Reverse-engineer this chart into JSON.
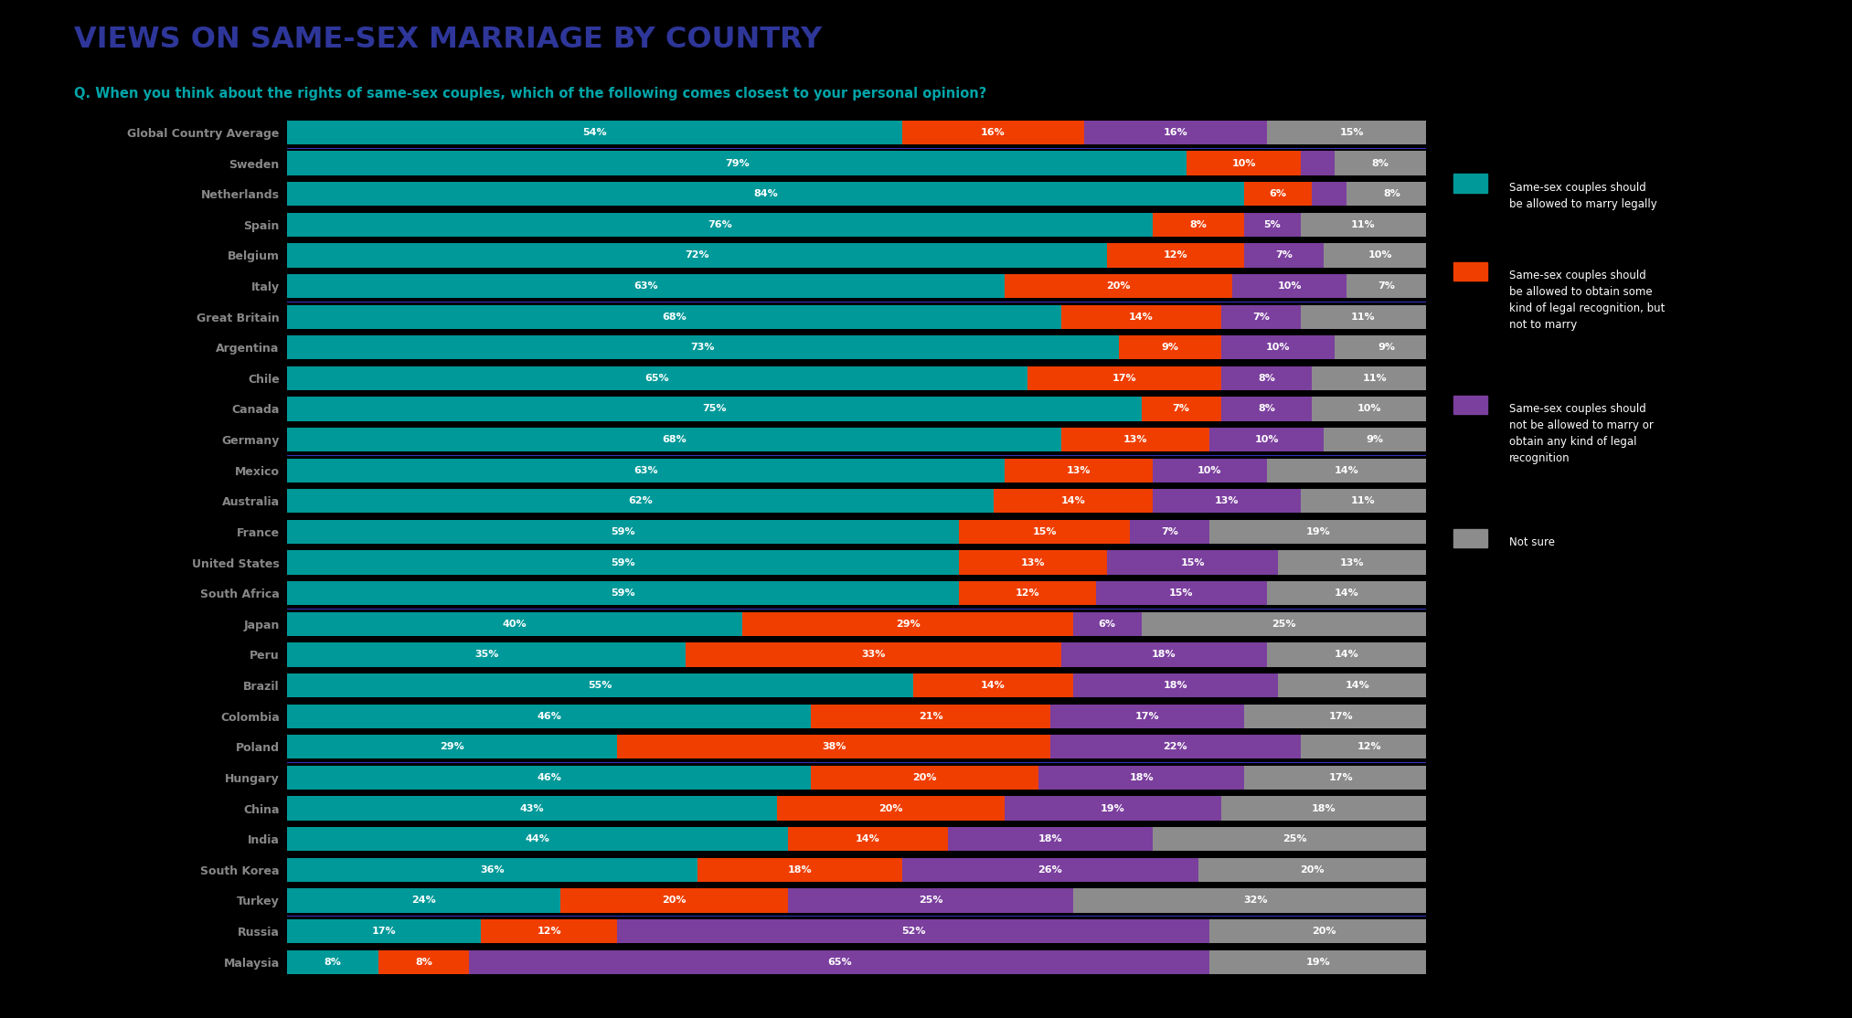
{
  "title": "VIEWS ON SAME-SEX MARRIAGE BY COUNTRY",
  "subtitle": "Q. When you think about the rights of same-sex couples, which of the following comes closest to your personal opinion?",
  "title_color": "#2E3699",
  "subtitle_color": "#00A5A8",
  "background_color": "#000000",
  "colors": {
    "marry": "#009999",
    "recognition": "#F03E00",
    "no_recognition": "#7B3F9E",
    "not_sure": "#8C8C8C"
  },
  "categories": [
    "Global Country Average",
    "Sweden",
    "Netherlands",
    "Spain",
    "Belgium",
    "Italy",
    "Great Britain",
    "Argentina",
    "Chile",
    "Canada",
    "Germany",
    "Mexico",
    "Australia",
    "France",
    "United States",
    "South Africa",
    "Japan",
    "Peru",
    "Brazil",
    "Colombia",
    "Poland",
    "Hungary",
    "China",
    "India",
    "South Korea",
    "Turkey",
    "Russia",
    "Malaysia"
  ],
  "data": {
    "marry": [
      54,
      79,
      84,
      76,
      72,
      63,
      68,
      73,
      65,
      75,
      68,
      63,
      62,
      59,
      59,
      59,
      40,
      35,
      55,
      46,
      29,
      46,
      43,
      44,
      36,
      24,
      17,
      8
    ],
    "recognition": [
      16,
      10,
      6,
      8,
      12,
      20,
      14,
      9,
      17,
      7,
      13,
      13,
      14,
      15,
      13,
      12,
      29,
      33,
      14,
      21,
      38,
      20,
      20,
      14,
      18,
      20,
      12,
      8
    ],
    "no_recognition": [
      16,
      3,
      3,
      5,
      7,
      10,
      7,
      10,
      8,
      8,
      10,
      10,
      13,
      7,
      15,
      15,
      6,
      18,
      18,
      17,
      22,
      18,
      19,
      18,
      26,
      25,
      52,
      65
    ],
    "not_sure": [
      15,
      8,
      8,
      11,
      10,
      7,
      11,
      9,
      11,
      10,
      9,
      14,
      11,
      19,
      13,
      14,
      25,
      14,
      14,
      17,
      12,
      17,
      18,
      25,
      20,
      32,
      20,
      19
    ]
  },
  "divider_indices": [
    0,
    5,
    10,
    15,
    20,
    25
  ],
  "legend": {
    "marry": "Same-sex couples should\nbe allowed to marry legally",
    "recognition": "Same-sex couples should\nbe allowed to obtain some\nkind of legal recognition, but\nnot to marry",
    "no_recognition": "Same-sex couples should\nnot be allowed to marry or\nobtain any kind of legal\nrecognition",
    "not_sure": "Not sure"
  },
  "label_min_pct": 4
}
